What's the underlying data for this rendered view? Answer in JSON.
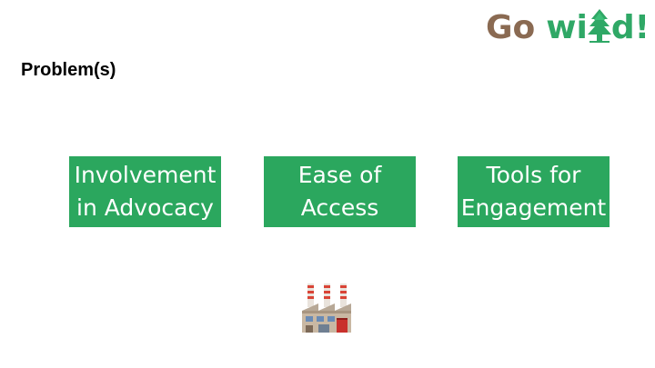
{
  "logo": {
    "part1": "Go",
    "part2_start": "wi",
    "part2_end": "d!",
    "tree_icon": "pine-tree-icon",
    "colors": {
      "go": "#8a6a52",
      "wild": "#2fa866"
    }
  },
  "slide": {
    "title": "Problem(s)",
    "boxes": [
      {
        "label": "Involvement\nin Advocacy"
      },
      {
        "label": "Ease of\nAccess"
      },
      {
        "label": "Tools for\nEngagement"
      }
    ],
    "box_color": "#2ba75e",
    "icon": "factory-icon"
  }
}
